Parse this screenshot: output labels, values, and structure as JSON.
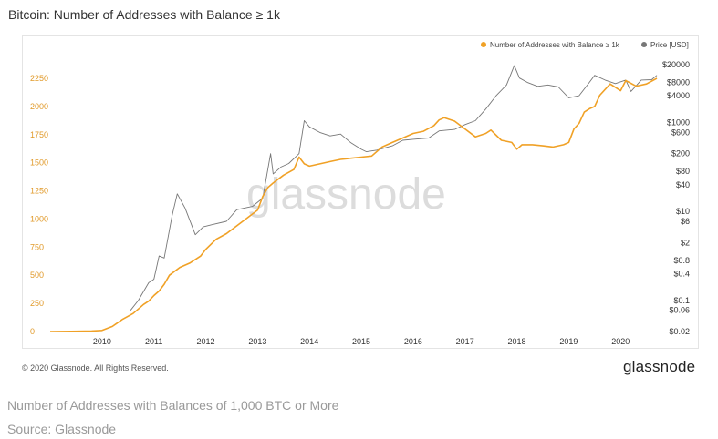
{
  "chart_data": {
    "type": "line",
    "title": "Bitcoin: Number of Addresses with Balance ≥ 1k",
    "watermark": "glassnode",
    "legend_position": "top-right",
    "grid": false,
    "x_ticks": [
      "2010",
      "2011",
      "2012",
      "2013",
      "2014",
      "2015",
      "2016",
      "2017",
      "2018",
      "2019",
      "2020"
    ],
    "x_range": [
      2009.0,
      2020.7
    ],
    "y_left_ticks": [
      "0",
      "250",
      "500",
      "750",
      "1000",
      "1250",
      "1500",
      "1750",
      "2000",
      "2250"
    ],
    "y_left_range": [
      0,
      2250
    ],
    "y_right_ticks": [
      "$0.02",
      "$0.06",
      "$0.1",
      "$0.4",
      "$0.8",
      "$2",
      "$6",
      "$10",
      "$40",
      "$80",
      "$200",
      "$600",
      "$1000",
      "$4000",
      "$8000",
      "$20000"
    ],
    "y_right_scale": "log",
    "series": [
      {
        "name": "Number of Addresses with Balance ≥ 1k",
        "color": "#f0a126",
        "axis": "left",
        "x": [
          2009.0,
          2009.4,
          2009.8,
          2010.0,
          2010.2,
          2010.4,
          2010.5,
          2010.6,
          2010.7,
          2010.8,
          2010.9,
          2011.0,
          2011.1,
          2011.2,
          2011.3,
          2011.5,
          2011.7,
          2011.9,
          2012.0,
          2012.2,
          2012.4,
          2012.6,
          2012.8,
          2013.0,
          2013.1,
          2013.2,
          2013.3,
          2013.5,
          2013.7,
          2013.8,
          2013.9,
          2014.0,
          2014.2,
          2014.4,
          2014.6,
          2014.8,
          2015.0,
          2015.2,
          2015.4,
          2015.6,
          2015.8,
          2016.0,
          2016.2,
          2016.4,
          2016.5,
          2016.6,
          2016.8,
          2017.0,
          2017.2,
          2017.4,
          2017.5,
          2017.7,
          2017.9,
          2018.0,
          2018.1,
          2018.3,
          2018.5,
          2018.7,
          2018.9,
          2019.0,
          2019.1,
          2019.2,
          2019.3,
          2019.4,
          2019.5,
          2019.6,
          2019.8,
          2020.0,
          2020.1,
          2020.3,
          2020.5,
          2020.7
        ],
        "y": [
          0,
          2,
          5,
          10,
          45,
          110,
          135,
          160,
          200,
          240,
          270,
          320,
          360,
          420,
          500,
          570,
          610,
          670,
          730,
          820,
          870,
          940,
          1010,
          1080,
          1200,
          1280,
          1320,
          1390,
          1440,
          1550,
          1490,
          1470,
          1490,
          1510,
          1530,
          1540,
          1550,
          1560,
          1640,
          1680,
          1720,
          1760,
          1780,
          1830,
          1880,
          1900,
          1870,
          1800,
          1730,
          1760,
          1790,
          1700,
          1680,
          1620,
          1660,
          1660,
          1650,
          1640,
          1660,
          1680,
          1800,
          1850,
          1950,
          1980,
          2000,
          2100,
          2200,
          2140,
          2230,
          2180,
          2200,
          2250
        ]
      },
      {
        "name": "Price [USD]",
        "color": "#777777",
        "axis": "right",
        "x": [
          2010.55,
          2010.7,
          2010.9,
          2011.0,
          2011.1,
          2011.2,
          2011.35,
          2011.45,
          2011.6,
          2011.8,
          2011.95,
          2012.1,
          2012.4,
          2012.6,
          2012.9,
          2013.1,
          2013.25,
          2013.3,
          2013.45,
          2013.6,
          2013.8,
          2013.9,
          2014.0,
          2014.2,
          2014.4,
          2014.6,
          2014.8,
          2015.0,
          2015.1,
          2015.3,
          2015.6,
          2015.8,
          2016.0,
          2016.3,
          2016.5,
          2016.8,
          2017.0,
          2017.2,
          2017.4,
          2017.6,
          2017.8,
          2017.95,
          2018.05,
          2018.2,
          2018.4,
          2018.6,
          2018.8,
          2019.0,
          2019.2,
          2019.4,
          2019.5,
          2019.7,
          2019.9,
          2020.1,
          2020.2,
          2020.4,
          2020.6,
          2020.7
        ],
        "y": [
          0.06,
          0.1,
          0.25,
          0.3,
          1.0,
          0.9,
          8.0,
          25.0,
          12.0,
          3.0,
          4.5,
          5.0,
          6.0,
          11.0,
          13.0,
          20.0,
          200.0,
          70.0,
          100.0,
          120.0,
          200.0,
          1100.0,
          800.0,
          600.0,
          500.0,
          550.0,
          350.0,
          250.0,
          220.0,
          240.0,
          300.0,
          400.0,
          420.0,
          450.0,
          650.0,
          700.0,
          900.0,
          1100.0,
          2000.0,
          4000.0,
          7000.0,
          19000.0,
          10000.0,
          8000.0,
          6500.0,
          7000.0,
          6300.0,
          3600.0,
          4000.0,
          8000.0,
          11500.0,
          9000.0,
          7500.0,
          9000.0,
          5000.0,
          9000.0,
          9200.0,
          11500.0
        ]
      }
    ]
  },
  "footer": {
    "copyright": "© 2020 Glassnode. All Rights Reserved.",
    "brand": "glassnode"
  },
  "caption": "Number of Addresses with Balances of 1,000 BTC or More",
  "source": "Source: Glassnode"
}
